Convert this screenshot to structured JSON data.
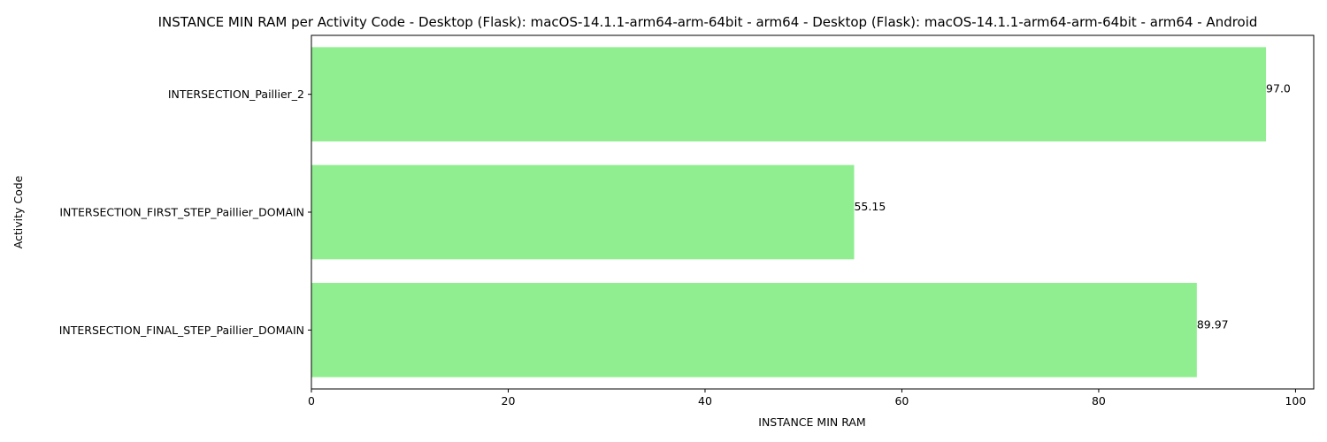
{
  "chart_data": {
    "type": "bar",
    "orientation": "horizontal",
    "title": "INSTANCE MIN RAM per Activity Code - Desktop (Flask): macOS-14.1.1-arm64-arm-64bit - arm64 - Desktop (Flask): macOS-14.1.1-arm64-arm-64bit - arm64 - Android",
    "xlabel": "INSTANCE MIN RAM",
    "ylabel": "Activity Code",
    "categories": [
      "INTERSECTION_Paillier_2",
      "INTERSECTION_FIRST_STEP_Paillier_DOMAIN",
      "INTERSECTION_FINAL_STEP_Paillier_DOMAIN"
    ],
    "values": [
      97.0,
      55.15,
      89.97
    ],
    "value_labels": [
      "97.0",
      "55.15",
      "89.97"
    ],
    "xlim": [
      0,
      101.85
    ],
    "xticks": [
      0,
      20,
      40,
      60,
      80,
      100
    ],
    "xtick_labels": [
      "0",
      "20",
      "40",
      "60",
      "80",
      "100"
    ],
    "grid": false,
    "bar_color": "#90ee90"
  }
}
